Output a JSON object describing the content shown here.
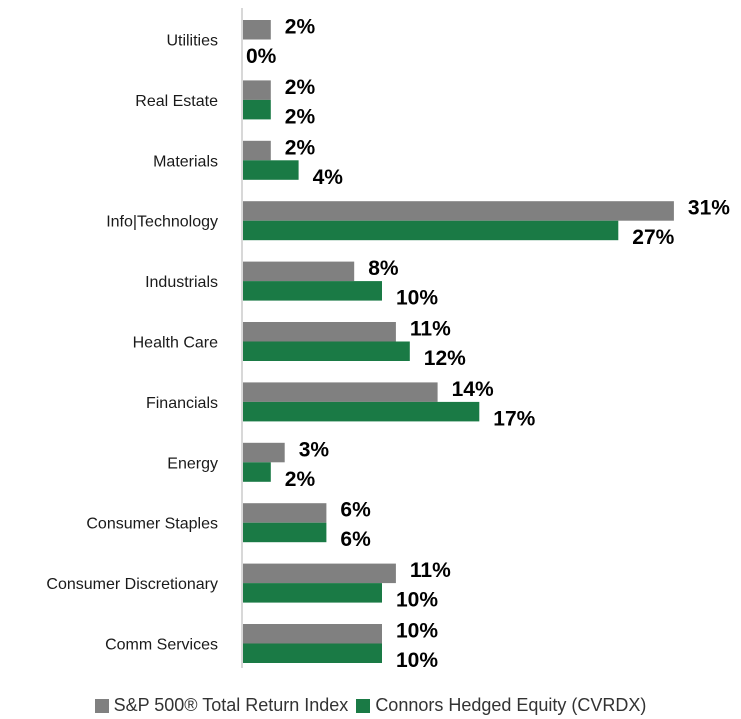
{
  "chart_data": {
    "type": "bar",
    "orientation": "horizontal",
    "title": "",
    "xlabel": "",
    "ylabel": "",
    "xlim": [
      0,
      34
    ],
    "grid": false,
    "legend_position": "bottom",
    "categories": [
      "Utilities",
      "Real Estate",
      "Materials",
      "Info|Technology",
      "Industrials",
      "Health Care",
      "Financials",
      "Energy",
      "Consumer Staples",
      "Consumer Discretionary",
      "Comm Services"
    ],
    "series": [
      {
        "name": "S&P 500® Total Return Index",
        "color": "#808080",
        "values": [
          2,
          2,
          2,
          31,
          8,
          11,
          14,
          3,
          6,
          11,
          10
        ],
        "labels": [
          "2%",
          "2%",
          "2%",
          "31%",
          "8%",
          "11%",
          "14%",
          "3%",
          "6%",
          "11%",
          "10%"
        ]
      },
      {
        "name": "Connors Hedged Equity (CVRDX)",
        "color": "#1a7a45",
        "values": [
          0,
          2,
          4,
          27,
          10,
          12,
          17,
          2,
          6,
          10,
          10
        ],
        "labels": [
          "0%",
          "2%",
          "4%",
          "27%",
          "10%",
          "12%",
          "17%",
          "2%",
          "6%",
          "10%",
          "10%"
        ]
      }
    ]
  }
}
